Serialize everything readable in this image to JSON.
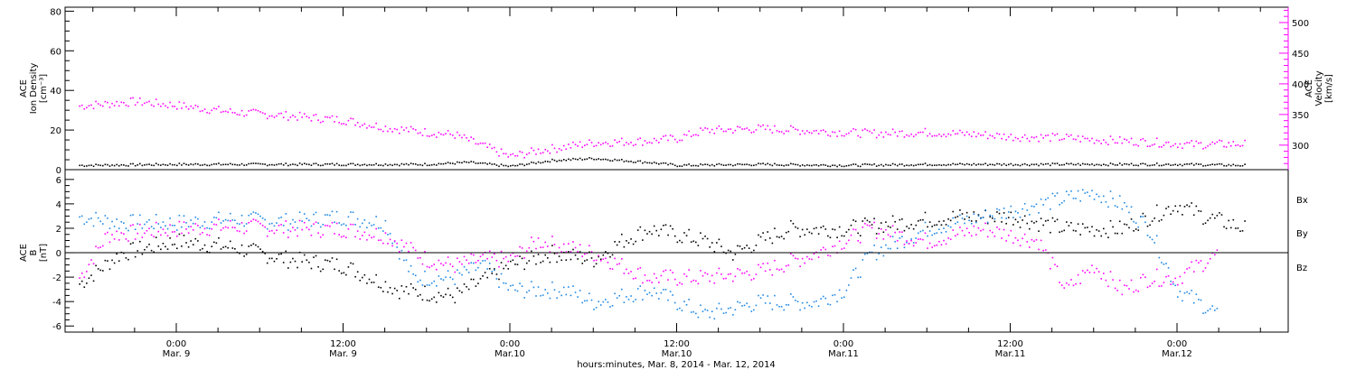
{
  "chart_data": [
    {
      "type": "scatter",
      "panel": "plasma",
      "ylabel_lines": [
        "ACE",
        "Ion Density",
        "[cm⁻³]"
      ],
      "ylim": [
        0,
        82
      ],
      "yticks": [
        0,
        20,
        40,
        60,
        80
      ],
      "y2label_lines": [
        "ACE",
        "Velocity",
        "[km/s]"
      ],
      "y2lim": [
        260,
        525
      ],
      "y2ticks": [
        300,
        350,
        400,
        450,
        500
      ],
      "colors": {
        "density": "#000000",
        "velocity": "#ff00ff"
      },
      "series": [
        {
          "axis": "left",
          "color": "#000000",
          "points": [
            [
              -7,
              2.5
            ],
            [
              0,
              3
            ],
            [
              6,
              3
            ],
            [
              12,
              3
            ],
            [
              18,
              3
            ],
            [
              21,
              4
            ],
            [
              24,
              2
            ],
            [
              27,
              5
            ],
            [
              30,
              6
            ],
            [
              34,
              4
            ],
            [
              36,
              2.5
            ],
            [
              42,
              3
            ],
            [
              48,
              2.5
            ],
            [
              54,
              3
            ],
            [
              60,
              3
            ],
            [
              66,
              3
            ],
            [
              72,
              3
            ],
            [
              77,
              2.5
            ]
          ]
        },
        {
          "axis": "right",
          "color": "#ff00ff",
          "points": [
            [
              -7,
              365
            ],
            [
              -3,
              372
            ],
            [
              0,
              366
            ],
            [
              4,
              355
            ],
            [
              8,
              349
            ],
            [
              12,
              342
            ],
            [
              15,
              330
            ],
            [
              18,
              322
            ],
            [
              20,
              318
            ],
            [
              22,
              300
            ],
            [
              24,
              282
            ],
            [
              26,
              292
            ],
            [
              30,
              305
            ],
            [
              34,
              308
            ],
            [
              36,
              312
            ],
            [
              38,
              325
            ],
            [
              42,
              328
            ],
            [
              46,
              324
            ],
            [
              50,
              320
            ],
            [
              54,
              322
            ],
            [
              58,
              318
            ],
            [
              60,
              315
            ],
            [
              64,
              313
            ],
            [
              66,
              310
            ],
            [
              70,
              306
            ],
            [
              73,
              302
            ],
            [
              77,
              303
            ]
          ]
        }
      ]
    },
    {
      "type": "scatter",
      "panel": "magnetic",
      "ylabel_lines": [
        "ACE",
        "B",
        "[nT]"
      ],
      "ylim": [
        -6.5,
        6.8
      ],
      "yticks": [
        -6,
        -4,
        -2,
        0,
        2,
        4,
        6
      ],
      "hline": 0,
      "legend": [
        "Bx",
        "By",
        "Bz"
      ],
      "series": [
        {
          "name": "Bx",
          "color": "#000000",
          "points": [
            [
              -7,
              -2.5
            ],
            [
              -4,
              0
            ],
            [
              0,
              1
            ],
            [
              4,
              0.5
            ],
            [
              8,
              -0.5
            ],
            [
              12,
              -1
            ],
            [
              16,
              -3
            ],
            [
              20,
              -3.5
            ],
            [
              24,
              -1
            ],
            [
              27,
              0
            ],
            [
              30,
              -0.5
            ],
            [
              32,
              1
            ],
            [
              34,
              2
            ],
            [
              38,
              1
            ],
            [
              40,
              0
            ],
            [
              44,
              2
            ],
            [
              48,
              2
            ],
            [
              52,
              2.5
            ],
            [
              56,
              3
            ],
            [
              60,
              3
            ],
            [
              64,
              2
            ],
            [
              68,
              2
            ],
            [
              72,
              4
            ],
            [
              74,
              3
            ],
            [
              77,
              2
            ]
          ]
        },
        {
          "name": "By",
          "color": "#1e88e5",
          "points": [
            [
              -7,
              3
            ],
            [
              -4,
              2.5
            ],
            [
              0,
              2.5
            ],
            [
              4,
              2.8
            ],
            [
              8,
              2.6
            ],
            [
              12,
              3
            ],
            [
              15,
              2.5
            ],
            [
              17,
              -2
            ],
            [
              20,
              -2
            ],
            [
              22,
              -1
            ],
            [
              24,
              -3
            ],
            [
              28,
              -3
            ],
            [
              30,
              -4
            ],
            [
              34,
              -3
            ],
            [
              38,
              -5
            ],
            [
              42,
              -4
            ],
            [
              46,
              -4
            ],
            [
              48,
              -3
            ],
            [
              50,
              0
            ],
            [
              54,
              2
            ],
            [
              58,
              3
            ],
            [
              62,
              4
            ],
            [
              66,
              5
            ],
            [
              68,
              4
            ],
            [
              70,
              2
            ],
            [
              72,
              -3
            ],
            [
              75,
              -5
            ]
          ]
        },
        {
          "name": "Bz",
          "color": "#ff00ff",
          "points": [
            [
              -7,
              -2
            ],
            [
              -5,
              1.5
            ],
            [
              0,
              2
            ],
            [
              4,
              2.2
            ],
            [
              8,
              2
            ],
            [
              12,
              2
            ],
            [
              15,
              1.5
            ],
            [
              18,
              -0.5
            ],
            [
              20,
              -1
            ],
            [
              22,
              -0.5
            ],
            [
              24,
              -0.5
            ],
            [
              26,
              1
            ],
            [
              30,
              0
            ],
            [
              34,
              -2
            ],
            [
              38,
              -2
            ],
            [
              42,
              -1.5
            ],
            [
              46,
              0
            ],
            [
              50,
              2
            ],
            [
              54,
              1
            ],
            [
              58,
              2
            ],
            [
              62,
              1
            ],
            [
              64,
              -3
            ],
            [
              66,
              -1
            ],
            [
              68,
              -3
            ],
            [
              70,
              -2
            ],
            [
              72,
              -2
            ],
            [
              75,
              0
            ]
          ]
        }
      ]
    }
  ],
  "x_axis": {
    "unit": "hours",
    "ticks": [
      {
        "hour": 0,
        "top": "0:00",
        "bottom": "Mar. 9"
      },
      {
        "hour": 12,
        "top": "12:00",
        "bottom": "Mar. 9"
      },
      {
        "hour": 24,
        "top": "0:00",
        "bottom": "Mar.10"
      },
      {
        "hour": 36,
        "top": "12:00",
        "bottom": "Mar.10"
      },
      {
        "hour": 48,
        "top": "0:00",
        "bottom": "Mar.11"
      },
      {
        "hour": 60,
        "top": "12:00",
        "bottom": "Mar.11"
      },
      {
        "hour": 72,
        "top": "0:00",
        "bottom": "Mar.12"
      }
    ],
    "xlim": [
      -8,
      80
    ],
    "title": "hours:minutes, Mar. 8, 2014 - Mar. 12, 2014"
  }
}
